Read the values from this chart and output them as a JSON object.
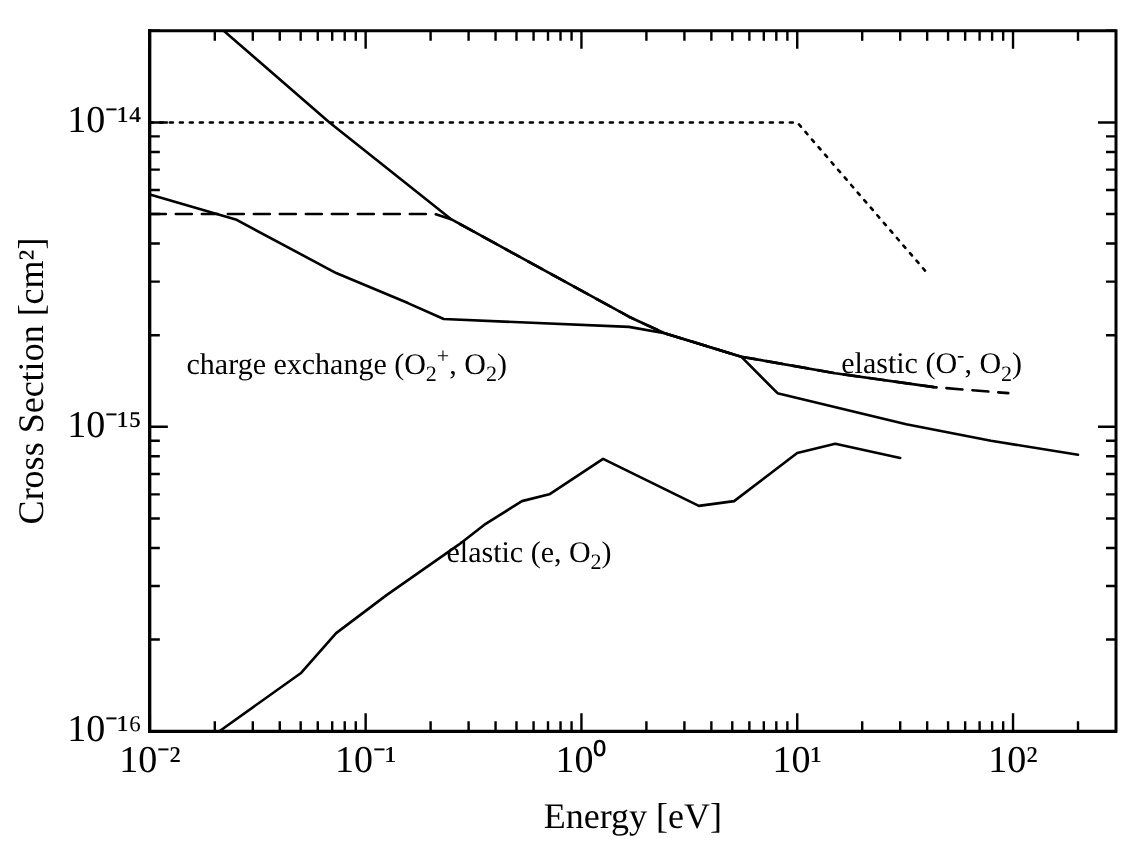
{
  "chart_data": {
    "type": "line",
    "xlabel": "Energy [eV]",
    "ylabel": "Cross Section [cm²]",
    "log": "xy",
    "grid": false,
    "legend": false,
    "marker": "none",
    "xlim": [
      0.01,
      300
    ],
    "ylim": [
      1e-16,
      2e-14
    ],
    "xticks": [
      {
        "value": 0.01,
        "label": "10⁻²"
      },
      {
        "value": 0.02,
        "label": null
      },
      {
        "value": 0.03,
        "label": null
      },
      {
        "value": 0.04,
        "label": null
      },
      {
        "value": 0.05,
        "label": null
      },
      {
        "value": 0.06,
        "label": null
      },
      {
        "value": 0.07,
        "label": null
      },
      {
        "value": 0.08,
        "label": null
      },
      {
        "value": 0.09,
        "label": null
      },
      {
        "value": 0.1,
        "label": "10⁻¹"
      },
      {
        "value": 0.2,
        "label": null
      },
      {
        "value": 0.3,
        "label": null
      },
      {
        "value": 0.4,
        "label": null
      },
      {
        "value": 0.5,
        "label": null
      },
      {
        "value": 0.6,
        "label": null
      },
      {
        "value": 0.7,
        "label": null
      },
      {
        "value": 0.8,
        "label": null
      },
      {
        "value": 0.9,
        "label": null
      },
      {
        "value": 1,
        "label": "10⁰"
      },
      {
        "value": 2,
        "label": null
      },
      {
        "value": 3,
        "label": null
      },
      {
        "value": 4,
        "label": null
      },
      {
        "value": 5,
        "label": null
      },
      {
        "value": 6,
        "label": null
      },
      {
        "value": 7,
        "label": null
      },
      {
        "value": 8,
        "label": null
      },
      {
        "value": 9,
        "label": null
      },
      {
        "value": 10,
        "label": "10¹"
      },
      {
        "value": 20,
        "label": null
      },
      {
        "value": 30,
        "label": null
      },
      {
        "value": 40,
        "label": null
      },
      {
        "value": 50,
        "label": null
      },
      {
        "value": 60,
        "label": null
      },
      {
        "value": 70,
        "label": null
      },
      {
        "value": 80,
        "label": null
      },
      {
        "value": 90,
        "label": null
      },
      {
        "value": 100,
        "label": "10²"
      },
      {
        "value": 200,
        "label": null
      }
    ],
    "yticks": [
      {
        "value": 1e-16,
        "label": "10⁻¹⁶"
      },
      {
        "value": 2e-16,
        "label": null
      },
      {
        "value": 3e-16,
        "label": null
      },
      {
        "value": 4e-16,
        "label": null
      },
      {
        "value": 5e-16,
        "label": null
      },
      {
        "value": 6e-16,
        "label": null
      },
      {
        "value": 7e-16,
        "label": null
      },
      {
        "value": 8e-16,
        "label": null
      },
      {
        "value": 9e-16,
        "label": null
      },
      {
        "value": 1e-15,
        "label": "10⁻¹⁵"
      },
      {
        "value": 2e-15,
        "label": null
      },
      {
        "value": 3e-15,
        "label": null
      },
      {
        "value": 4e-15,
        "label": null
      },
      {
        "value": 5e-15,
        "label": null
      },
      {
        "value": 6e-15,
        "label": null
      },
      {
        "value": 7e-15,
        "label": null
      },
      {
        "value": 8e-15,
        "label": null
      },
      {
        "value": 9e-15,
        "label": null
      },
      {
        "value": 1e-14,
        "label": "10⁻¹⁴"
      },
      {
        "value": 2e-14,
        "label": null
      }
    ],
    "annotations": [
      "charge exchange (O$_{2}$$^{+}$, O$_{2}$)",
      {
        "text": "elastic (O$^{-}$, O$_{2}$)",
        "x": 16,
        "y": 1.5e-15
      },
      {
        "text": "elastic (e, O$_{2}$)",
        "x": 0.237,
        "y": 3.6e-16
      }
    ],
    "series": [
      {
        "color": "#000000",
        "line_style": "dotted",
        "x": [
          0.01,
          10,
          40
        ],
        "values": [
          1e-14,
          1e-14,
          3.2e-15
        ]
      },
      {
        "color": "#000000",
        "line_style": "dashed",
        "x": [
          0.01,
          0.21,
          0.25,
          1.66,
          2.43,
          5.5,
          15,
          43,
          95
        ],
        "values": [
          5e-15,
          5e-15,
          4.8e-15,
          2.3e-15,
          2.03e-15,
          1.7e-15,
          1.5e-15,
          1.35e-15,
          1.29e-15
        ]
      },
      {
        "color": "#000000",
        "line_style": "solid",
        "x": [
          0.022,
          0.068,
          0.25,
          1.66,
          2.43,
          5.5,
          15,
          43
        ],
        "values": [
          2e-14,
          1e-14,
          4.8e-15,
          2.3e-15,
          2.03e-15,
          1.7e-15,
          1.5e-15,
          1.35e-15
        ]
      },
      {
        "color": "#000000",
        "line_style": "solid",
        "x": [
          0.01,
          0.025,
          0.073,
          0.157,
          0.23,
          1.66,
          2.43,
          5.5,
          8.1,
          32,
          79,
          200
        ],
        "values": [
          5.8e-15,
          4.8e-15,
          3.2e-15,
          2.55e-15,
          2.26e-15,
          2.13e-15,
          2.03e-15,
          1.7e-15,
          1.29e-15,
          1.02e-15,
          9e-16,
          8.1e-16
        ]
      },
      {
        "color": "#000000",
        "line_style": "solid",
        "x": [
          0.021,
          0.05,
          0.073,
          0.125,
          0.27,
          0.36,
          0.53,
          0.71,
          1.26,
          3.5,
          5.1,
          10,
          15,
          30
        ],
        "values": [
          1e-16,
          1.55e-16,
          2.1e-16,
          2.8e-16,
          4.1e-16,
          4.8e-16,
          5.7e-16,
          6e-16,
          7.85e-16,
          5.5e-16,
          5.7e-16,
          8.2e-16,
          8.8e-16,
          7.9e-16
        ]
      }
    ]
  }
}
